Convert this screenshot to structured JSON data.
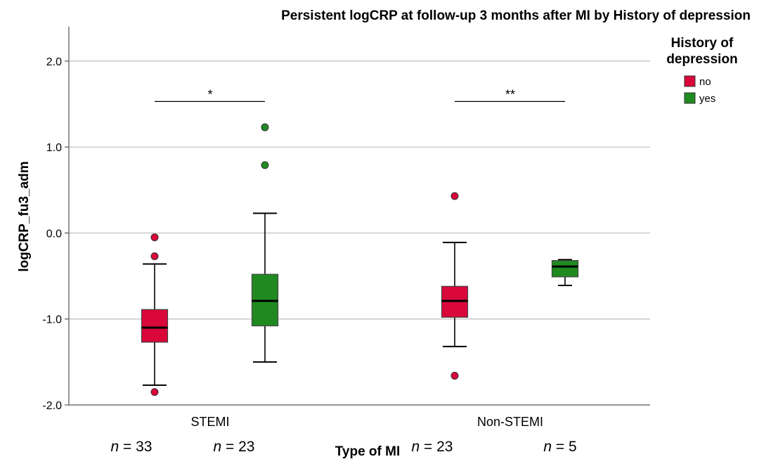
{
  "chart_data": {
    "type": "boxplot",
    "title": "Persistent logCRP at follow-up 3 months after MI by History of depression",
    "xlabel": "Type of MI",
    "ylabel": "logCRP_fu3_adm",
    "ylim": [
      -2.0,
      2.4
    ],
    "yticks": [
      {
        "value": 2.0,
        "label": "2.0"
      },
      {
        "value": 1.0,
        "label": "1.0"
      },
      {
        "value": 0.0,
        "label": "0.0"
      },
      {
        "value": -1.0,
        "label": "-1.0"
      },
      {
        "value": -2.0,
        "label": "-2.0"
      }
    ],
    "grid": true,
    "categories": [
      "STEMI",
      "Non-STEMI"
    ],
    "legend": {
      "title_line1": "History of",
      "title_line2": "depression",
      "placement": "top-right",
      "entries": [
        {
          "name": "no",
          "color": "#D9073A"
        },
        {
          "name": "yes",
          "color": "#208A20"
        }
      ]
    },
    "boxes": [
      {
        "category": "STEMI",
        "group": "no",
        "color": "#D9073A",
        "whisker_low": -1.77,
        "q1": -1.27,
        "median": -1.1,
        "q3": -0.89,
        "whisker_high": -0.36,
        "outliers": [
          -0.05,
          -0.27,
          -1.85
        ],
        "n_label": "= 33"
      },
      {
        "category": "STEMI",
        "group": "yes",
        "color": "#208A20",
        "whisker_low": -1.5,
        "q1": -1.08,
        "median": -0.79,
        "q3": -0.48,
        "whisker_high": 0.23,
        "outliers": [
          1.23,
          0.79
        ],
        "n_label": "= 23"
      },
      {
        "category": "Non-STEMI",
        "group": "no",
        "color": "#D9073A",
        "whisker_low": -1.32,
        "q1": -0.98,
        "median": -0.79,
        "q3": -0.62,
        "whisker_high": -0.11,
        "outliers": [
          0.43,
          -1.66
        ],
        "n_label": "= 23"
      },
      {
        "category": "Non-STEMI",
        "group": "yes",
        "color": "#208A20",
        "whisker_low": -0.61,
        "q1": -0.51,
        "median": -0.39,
        "q3": -0.32,
        "whisker_high": -0.31,
        "outliers": [],
        "n_label": "= 5"
      }
    ],
    "significance": [
      {
        "category": "STEMI",
        "label": "*",
        "y": 1.53
      },
      {
        "category": "Non-STEMI",
        "label": "**",
        "y": 1.53
      }
    ]
  }
}
